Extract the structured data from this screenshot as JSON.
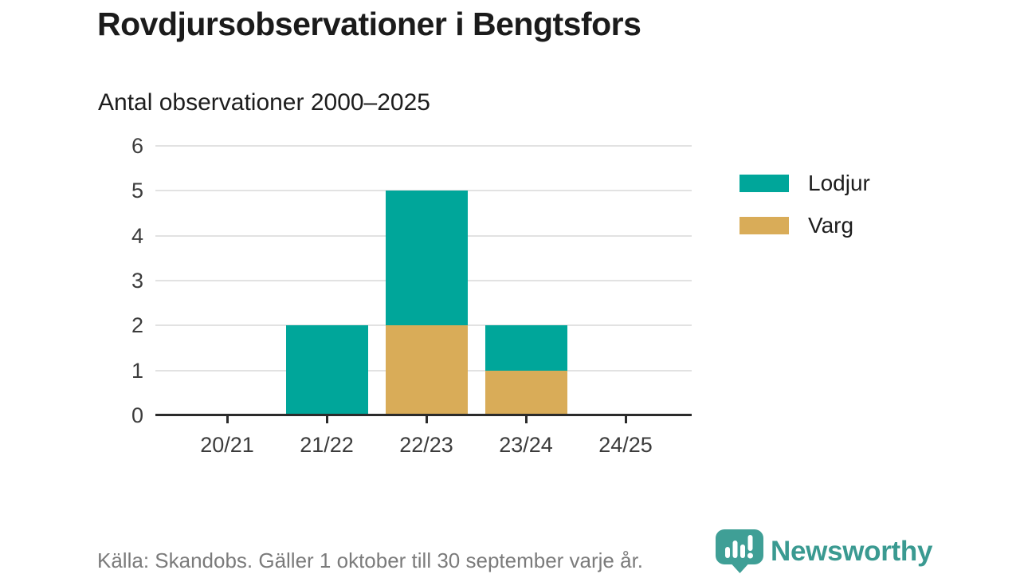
{
  "title": "Rovdjursobservationer i Bengtsfors",
  "subtitle": "Antal observationer 2000–2025",
  "source_note": "Källa: Skandobs. Gäller 1 oktober till 30 september varje år.",
  "brand": {
    "name": "Newsworthy",
    "icon": "newsworthy-speech-bubble-bar-chart-icon",
    "color": "#3a9a91",
    "icon_fill": "#3f9f96"
  },
  "colors": {
    "lodjur": "#00a69a",
    "varg": "#d9ac58",
    "grid": "#e2e2e2",
    "axis": "#2b2b2b",
    "tick_label": "#3c3c3c",
    "title_text": "#1b1b1b",
    "muted_text": "#7b7b7b"
  },
  "legend": {
    "position": "right",
    "items": [
      {
        "label": "Lodjur",
        "color": "#00a69a"
      },
      {
        "label": "Varg",
        "color": "#d9ac58"
      }
    ]
  },
  "chart_data": {
    "type": "bar",
    "stacked": true,
    "title": "Rovdjursobservationer i Bengtsfors",
    "subtitle": "Antal observationer 2000–2025",
    "categories": [
      "20/21",
      "21/22",
      "22/23",
      "23/24",
      "24/25"
    ],
    "series": [
      {
        "name": "Lodjur",
        "color": "#00a69a",
        "values": [
          0,
          2,
          3,
          1,
          0
        ]
      },
      {
        "name": "Varg",
        "color": "#d9ac58",
        "values": [
          0,
          0,
          2,
          1,
          0
        ]
      }
    ],
    "stack_order_bottom_to_top": [
      "Varg",
      "Lodjur"
    ],
    "totals": [
      0,
      2,
      5,
      2,
      0
    ],
    "xlabel": "",
    "ylabel": "",
    "ylim": [
      0,
      6
    ],
    "yticks": [
      0,
      1,
      2,
      3,
      4,
      5,
      6
    ],
    "grid": true,
    "legend_position": "right"
  }
}
